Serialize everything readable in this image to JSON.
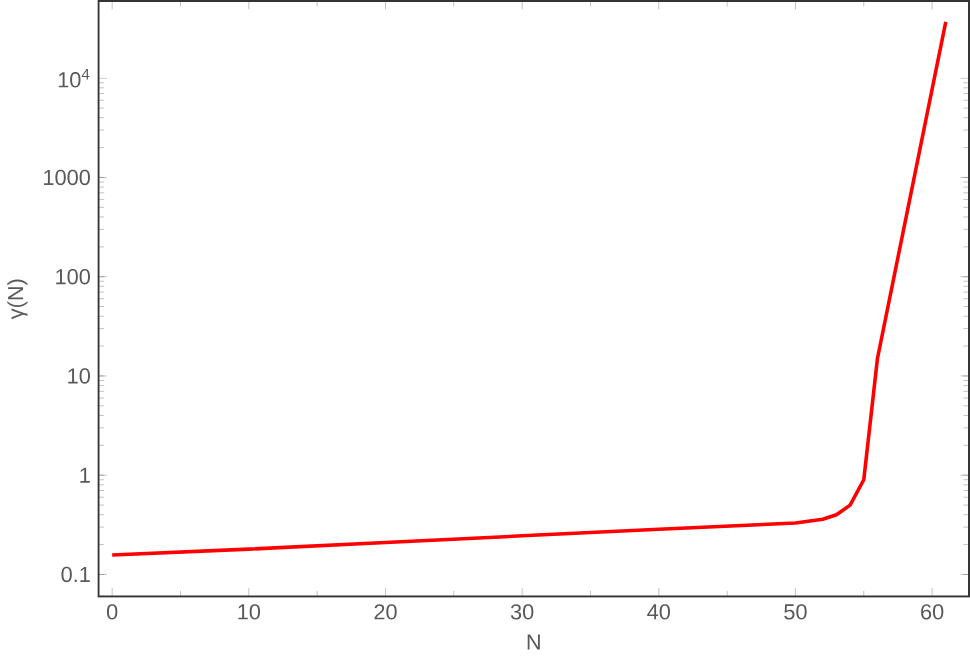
{
  "chart_data": {
    "type": "line",
    "xlabel": "N",
    "ylabel": "γ(N)",
    "log": "y",
    "xlim": [
      -1,
      62.7
    ],
    "xticks": [
      0,
      10,
      20,
      30,
      40,
      50,
      60
    ],
    "ylim": [
      0.06,
      60000
    ],
    "yticks": [
      0.1,
      1,
      10,
      100,
      1000,
      {
        "value": 10000,
        "label": "10$^{4}$"
      }
    ],
    "x": [
      0,
      10,
      20,
      30,
      40,
      50,
      52,
      53,
      54,
      55,
      56,
      61
    ],
    "series": [
      {
        "color": "#ff0000",
        "values": [
          0.157,
          0.18,
          0.21,
          0.245,
          0.285,
          0.33,
          0.36,
          0.4,
          0.5,
          0.9,
          15,
          37000
        ]
      }
    ]
  }
}
